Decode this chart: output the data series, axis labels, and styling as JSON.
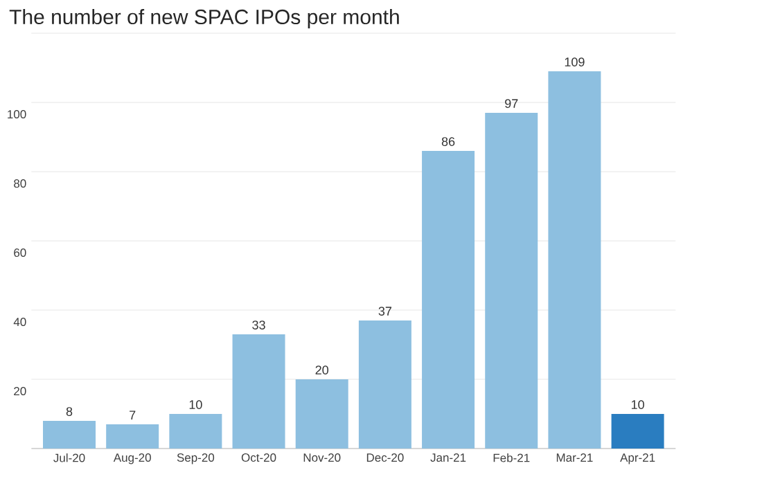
{
  "chart_data": {
    "type": "bar",
    "title": "The number of new SPAC IPOs per month",
    "categories": [
      "Jul-20",
      "Aug-20",
      "Sep-20",
      "Oct-20",
      "Nov-20",
      "Dec-20",
      "Jan-21",
      "Feb-21",
      "Mar-21",
      "Apr-21"
    ],
    "values": [
      8,
      7,
      10,
      33,
      20,
      37,
      86,
      97,
      109,
      10
    ],
    "colors": [
      "#8dbfe0",
      "#8dbfe0",
      "#8dbfe0",
      "#8dbfe0",
      "#8dbfe0",
      "#8dbfe0",
      "#8dbfe0",
      "#8dbfe0",
      "#8dbfe0",
      "#2a7dc0"
    ],
    "ylim": [
      0,
      120
    ],
    "yticks": [
      20,
      40,
      60,
      80,
      100,
      {
        "value": 120,
        "label": null
      }
    ],
    "grid": "y",
    "data_labels": true
  }
}
